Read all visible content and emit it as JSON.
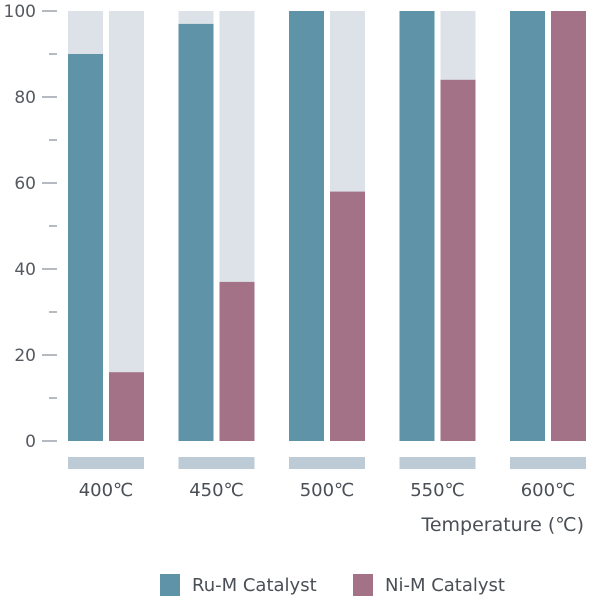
{
  "chart_data": {
    "type": "bar",
    "categories": [
      "400℃",
      "450℃",
      "500℃",
      "550℃",
      "600℃"
    ],
    "series": [
      {
        "name": "Ru-M Catalyst",
        "values": [
          90,
          97,
          100,
          100,
          100
        ],
        "color": "#5f93a7"
      },
      {
        "name": "Ni-M Catalyst",
        "values": [
          16,
          37,
          58,
          84,
          100
        ],
        "color": "#a37286"
      }
    ],
    "xlabel": "Temperature (℃)",
    "ylabel": "",
    "ylim": [
      0,
      100
    ],
    "yticks": [
      0,
      20,
      40,
      60,
      80,
      100
    ],
    "legend_position": "bottom",
    "colors": {
      "background_bar": "#dce2e8",
      "category_band": "#bccbd5",
      "tick": "#9aa3ab"
    }
  }
}
